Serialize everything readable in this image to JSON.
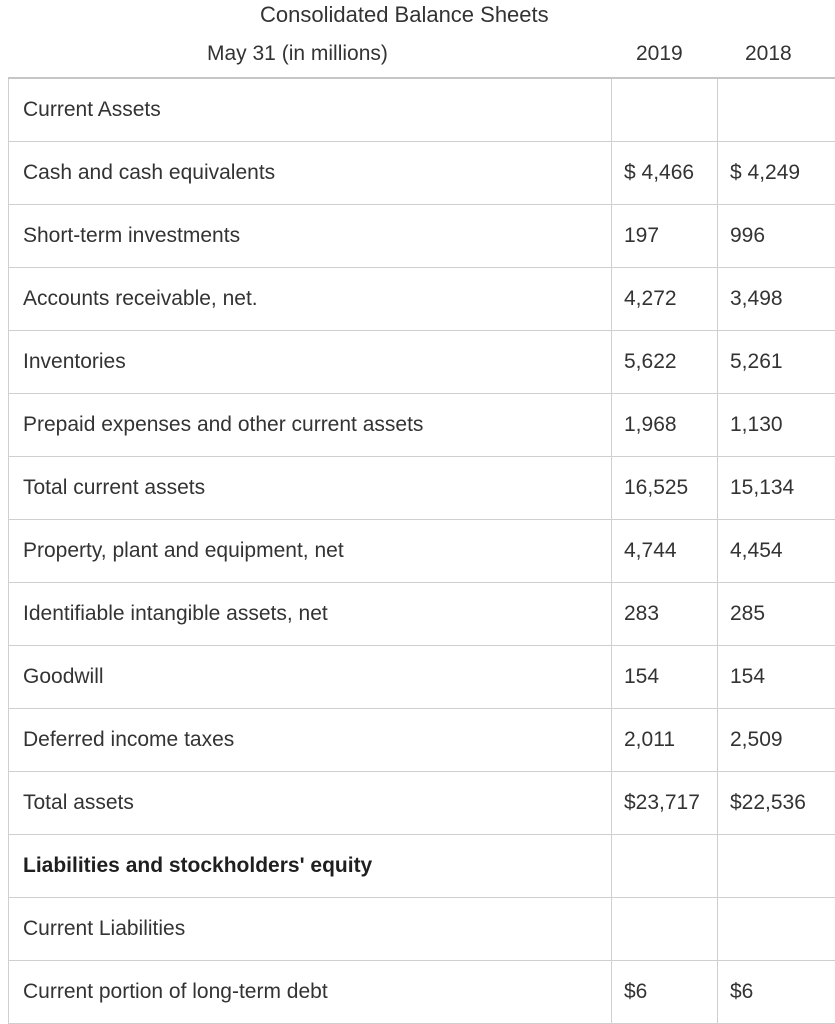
{
  "header": {
    "title": "Consolidated Balance Sheets",
    "subtitle": "May 31 (in millions)",
    "year_2019": "2019",
    "year_2018": "2018"
  },
  "rows": [
    {
      "label": "Current Assets",
      "v2019": "",
      "v2018": ""
    },
    {
      "label": "Cash and cash equivalents",
      "v2019": "$ 4,466",
      "v2018": "$ 4,249"
    },
    {
      "label": "Short-term investments",
      "v2019": "197",
      "v2018": "996"
    },
    {
      "label": "Accounts receivable, net.",
      "v2019": "4,272",
      "v2018": "3,498"
    },
    {
      "label": "Inventories",
      "v2019": "5,622",
      "v2018": "5,261"
    },
    {
      "label": "Prepaid expenses and other current assets",
      "v2019": "1,968",
      "v2018": "1,130"
    },
    {
      "label": "Total current assets",
      "v2019": "16,525",
      "v2018": "15,134"
    },
    {
      "label": "Property, plant and equipment, net",
      "v2019": "4,744",
      "v2018": "4,454"
    },
    {
      "label": "Identifiable intangible assets, net",
      "v2019": "283",
      "v2018": "285"
    },
    {
      "label": "Goodwill",
      "v2019": "154",
      "v2018": "154"
    },
    {
      "label": "Deferred income taxes",
      "v2019": "2,011",
      "v2018": "2,509"
    },
    {
      "label": "Total assets",
      "v2019": "$23,717",
      "v2018": "$22,536"
    },
    {
      "label": "Liabilities and stockholders' equity",
      "v2019": "",
      "v2018": ""
    },
    {
      "label": "Current Liabilities",
      "v2019": "",
      "v2018": ""
    },
    {
      "label": "Current portion of long-term debt",
      "v2019": "$6",
      "v2018": "$6"
    }
  ]
}
